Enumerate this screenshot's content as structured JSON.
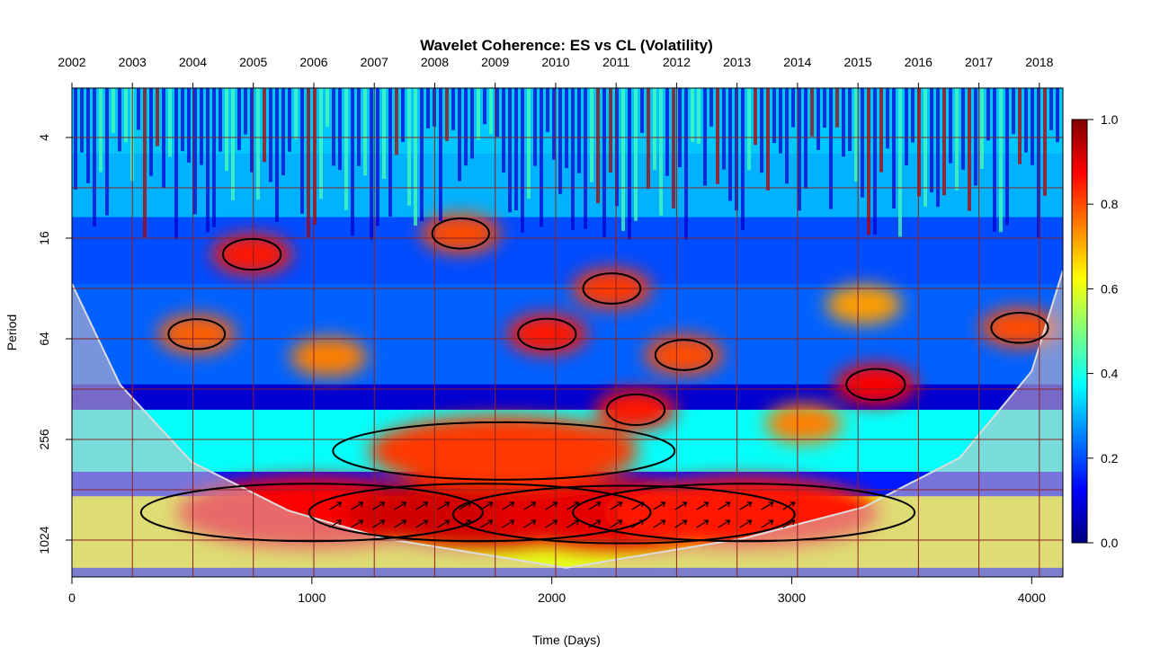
{
  "chart_data": {
    "type": "heatmap",
    "title": "Wavelet Coherence: ES vs CL (Volatility)",
    "xlabel": "Time (Days)",
    "ylabel": "Period",
    "x_range": [
      0,
      4130
    ],
    "x_ticks": [
      0,
      1000,
      2000,
      3000,
      4000
    ],
    "x_tick_labels": [
      "0",
      "1000",
      "2000",
      "3000",
      "4000"
    ],
    "top_axis": {
      "labels": [
        "2002",
        "2003",
        "2004",
        "2005",
        "2006",
        "2007",
        "2008",
        "2009",
        "2010",
        "2011",
        "2012",
        "2013",
        "2014",
        "2015",
        "2016",
        "2017",
        "2018"
      ],
      "positions": [
        0,
        252,
        504,
        756,
        1008,
        1260,
        1512,
        1764,
        2016,
        2268,
        2520,
        2772,
        3024,
        3276,
        3528,
        3780,
        4032
      ]
    },
    "y_scale": "log2",
    "y_range": [
      2,
      1500
    ],
    "y_ticks": [
      4,
      16,
      64,
      256,
      1024
    ],
    "y_tick_labels": [
      "4",
      "16",
      "64",
      "256",
      "1024"
    ],
    "colorbar": {
      "range": [
        0,
        1
      ],
      "ticks": [
        0.0,
        0.2,
        0.4,
        0.6,
        0.8,
        1.0
      ],
      "tick_labels": [
        "0.0",
        "0.2",
        "0.4",
        "0.6",
        "0.8",
        "1.0"
      ]
    },
    "regions": [
      {
        "x": 1000,
        "period": 700,
        "coherence": 0.88
      },
      {
        "x": 1700,
        "period": 700,
        "coherence": 0.92
      },
      {
        "x": 2300,
        "period": 720,
        "coherence": 0.9
      },
      {
        "x": 2800,
        "period": 700,
        "coherence": 0.85
      },
      {
        "x": 1800,
        "period": 300,
        "coherence": 0.82
      },
      {
        "x": 2350,
        "period": 170,
        "coherence": 0.85
      },
      {
        "x": 3350,
        "period": 120,
        "coherence": 0.88
      },
      {
        "x": 3050,
        "period": 205,
        "coherence": 0.75
      },
      {
        "x": 520,
        "period": 60,
        "coherence": 0.78
      },
      {
        "x": 1070,
        "period": 82,
        "coherence": 0.75
      },
      {
        "x": 1980,
        "period": 60,
        "coherence": 0.85
      },
      {
        "x": 2550,
        "period": 80,
        "coherence": 0.8
      },
      {
        "x": 3950,
        "period": 55,
        "coherence": 0.8
      },
      {
        "x": 3300,
        "period": 40,
        "coherence": 0.72
      },
      {
        "x": 2250,
        "period": 32,
        "coherence": 0.82
      },
      {
        "x": 750,
        "period": 20,
        "coherence": 0.85
      },
      {
        "x": 1620,
        "period": 15,
        "coherence": 0.8
      }
    ],
    "cone_of_influence": [
      [
        0,
        30
      ],
      [
        200,
        120
      ],
      [
        500,
        350
      ],
      [
        900,
        680
      ],
      [
        1300,
        1000
      ],
      [
        2060,
        1500
      ],
      [
        2800,
        1000
      ],
      [
        3300,
        650
      ],
      [
        3700,
        330
      ],
      [
        4000,
        100
      ],
      [
        4130,
        25
      ]
    ],
    "colors": {
      "scale": [
        "#00007f",
        "#0000ff",
        "#007fff",
        "#00ffff",
        "#7fff7f",
        "#ffff00",
        "#ff7f00",
        "#ff0000",
        "#7f0000"
      ],
      "grid": "#8b2222",
      "significance_contour": "#000000",
      "cone": "#d8c0c0"
    }
  }
}
